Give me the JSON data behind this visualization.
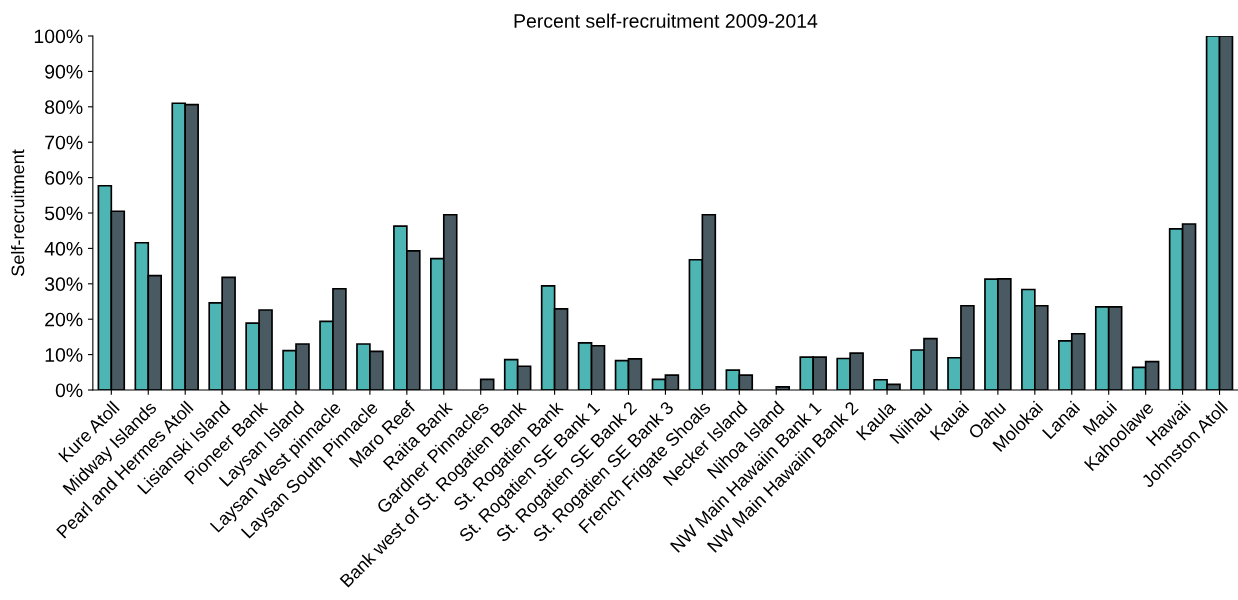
{
  "chart_data": {
    "type": "bar",
    "title": "Percent self-recruitment 2009-2014",
    "ylabel": "Self-recruitment",
    "categories": [
      "Kure Atoll",
      "Midway Islands",
      "Pearl and Hermes Atoll",
      "Lisianski Island",
      "Pioneer Bank",
      "Laysan Island",
      "Laysan West pinnacle",
      "Laysan South Pinnacle",
      "Maro Reef",
      "Raita Bank",
      "Gardner Pinnacles",
      "Bank west of St. Rogatien Bank",
      "St. Rogatien Bank",
      "St. Rogatien SE Bank 1",
      "St. Rogatien SE Bank 2",
      "St. Rogatien SE Bank 3",
      "French Frigate Shoals",
      "Necker Island",
      "Nihoa Island",
      "NW Main Hawaiin Bank 1",
      "NW Main Hawaiin Bank 2",
      "Kaula",
      "Niihau",
      "Kauai",
      "Oahu",
      "Molokai",
      "Lanai",
      "Maui",
      "Kahoolawe",
      "Hawaii",
      "Johnston Atoll"
    ],
    "series": [
      {
        "color": "#4db6b4",
        "values": [
          57.7,
          41.6,
          81,
          24.6,
          18.9,
          11.1,
          19.4,
          13,
          46.3,
          37.1,
          null,
          8.6,
          29.4,
          13.3,
          8.3,
          3,
          36.8,
          5.6,
          null,
          9.3,
          8.9,
          2.9,
          11.3,
          9.1,
          31.3,
          28.4,
          13.9,
          23.5,
          6.4,
          45.5,
          100
        ]
      },
      {
        "color": "#4a5a62",
        "values": [
          50.5,
          32.3,
          80.6,
          31.8,
          22.6,
          13,
          28.6,
          10.9,
          39.3,
          49.5,
          3,
          6.7,
          22.9,
          12.5,
          8.8,
          4.2,
          49.5,
          4.2,
          0.9,
          9.3,
          10.4,
          1.6,
          14.5,
          23.8,
          31.4,
          23.8,
          15.9,
          23.5,
          8,
          46.9,
          100
        ]
      }
    ],
    "ylim": [
      0,
      100
    ],
    "yticks": [
      {
        "value": 0,
        "label": "0%"
      },
      {
        "value": 10,
        "label": "10%"
      },
      {
        "value": 20,
        "label": "20%"
      },
      {
        "value": 30,
        "label": "30%"
      },
      {
        "value": 40,
        "label": "40%"
      },
      {
        "value": 50,
        "label": "50%"
      },
      {
        "value": 60,
        "label": "60%"
      },
      {
        "value": 70,
        "label": "70%"
      },
      {
        "value": 80,
        "label": "80%"
      },
      {
        "value": 90,
        "label": "90%"
      },
      {
        "value": 100,
        "label": "100%"
      }
    ],
    "grid": false,
    "legend": false
  }
}
